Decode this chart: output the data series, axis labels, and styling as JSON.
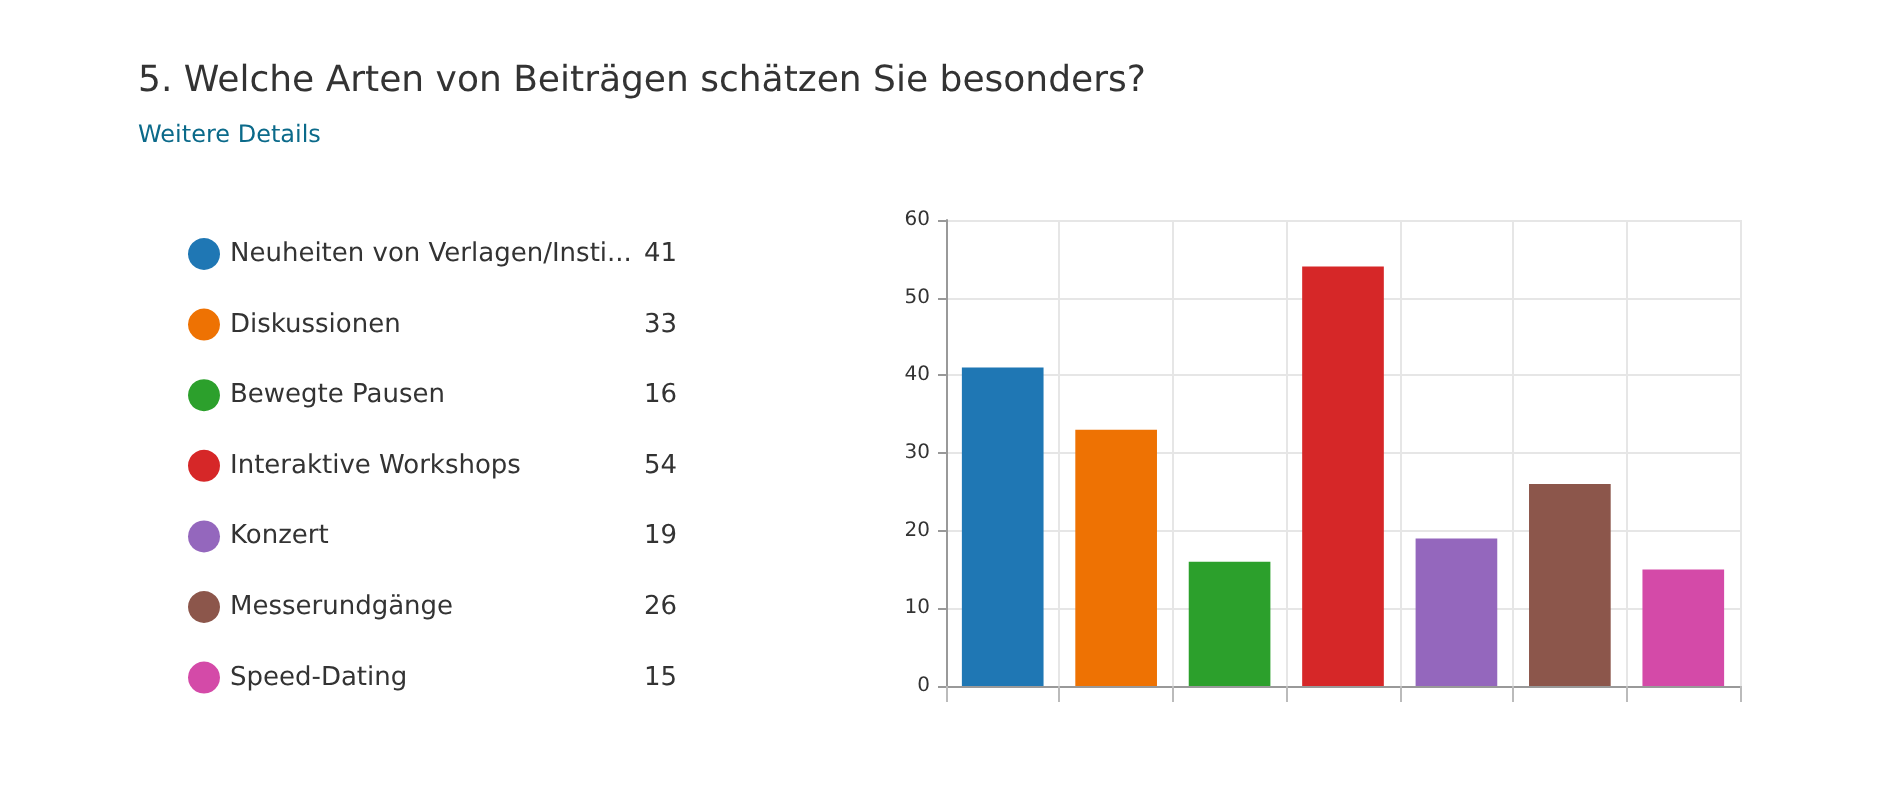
{
  "chart_data": {
    "type": "bar",
    "title": "5. Welche Arten von Beiträgen schätzen Sie besonders?",
    "subtitle": "Weitere Details",
    "categories": [
      null,
      null,
      null,
      null,
      null,
      null,
      null
    ],
    "series": [
      {
        "name": "Neuheiten von Verlagen/Insti...",
        "color": "#1f77b4",
        "values": [
          41,
          null,
          null,
          null,
          null,
          null,
          null
        ]
      },
      {
        "name": "Diskussionen",
        "color": "#ee7203",
        "values": [
          null,
          33,
          null,
          null,
          null,
          null,
          null
        ]
      },
      {
        "name": "Bewegte Pausen",
        "color": "#2ca02c",
        "values": [
          null,
          null,
          16,
          null,
          null,
          null,
          null
        ]
      },
      {
        "name": "Interaktive Workshops",
        "color": "#d62728",
        "values": [
          null,
          null,
          null,
          54,
          null,
          null,
          null
        ]
      },
      {
        "name": "Konzert",
        "color": "#9467bd",
        "values": [
          null,
          null,
          null,
          null,
          19,
          null,
          null
        ]
      },
      {
        "name": "Messerundgänge",
        "color": "#8c564b",
        "values": [
          null,
          null,
          null,
          null,
          null,
          26,
          null
        ]
      },
      {
        "name": "Speed-Dating",
        "color": "#d44aa8",
        "values": [
          null,
          null,
          null,
          null,
          null,
          null,
          15
        ]
      }
    ],
    "ylim": [
      0,
      60
    ],
    "yticks": [
      0,
      10,
      20,
      30,
      40,
      50,
      60
    ],
    "grid": true,
    "legend": "left",
    "tick_labels": "y",
    "annotations": [
      "41",
      "33",
      "16",
      "54",
      "19",
      "26",
      "15"
    ]
  }
}
